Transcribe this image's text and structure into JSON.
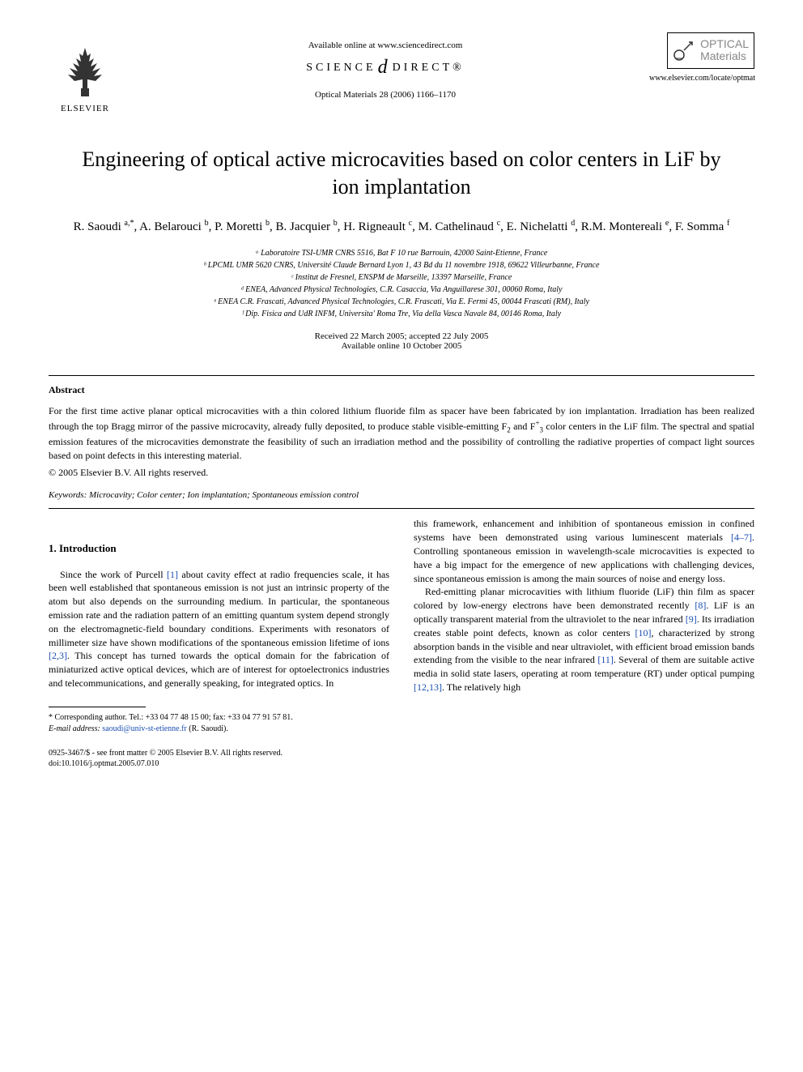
{
  "header": {
    "publisher": "ELSEVIER",
    "available_online": "Available online at www.sciencedirect.com",
    "science_direct_left": "SCIENCE",
    "science_direct_right": "DIRECT®",
    "journal_citation": "Optical Materials 28 (2006) 1166–1170",
    "journal_name_line1": "OPTICAL",
    "journal_name_line2": "Materials",
    "locate_url": "www.elsevier.com/locate/optmat"
  },
  "title": "Engineering of optical active microcavities based on color centers in LiF by ion implantation",
  "authors_html": "R. Saoudi <sup>a,*</sup>, A. Belarouci <sup>b</sup>, P. Moretti <sup>b</sup>, B. Jacquier <sup>b</sup>, H. Rigneault <sup>c</sup>, M. Cathelinaud <sup>c</sup>, E. Nichelatti <sup>d</sup>, R.M. Montereali <sup>e</sup>, F. Somma <sup>f</sup>",
  "affiliations": [
    "ᵃ Laboratoire TSI-UMR CNRS 5516, Bat F 10 rue Barrouin, 42000 Saint-Etienne, France",
    "ᵇ LPCML UMR 5620 CNRS, Université Claude Bernard Lyon 1, 43 Bd du 11 novembre 1918, 69622 Villeurbanne, France",
    "ᶜ Institut de Fresnel, ENSPM de Marseille, 13397 Marseille, France",
    "ᵈ ENEA, Advanced Physical Technologies, C.R. Casaccia, Via Anguillarese 301, 00060 Roma, Italy",
    "ᵉ ENEA C.R. Frascati, Advanced Physical Technologies, C.R. Frascati, Via E. Fermi 45, 00044 Frascati (RM), Italy",
    "ᶠ Dip. Fisica and UdR INFM, Universita' Roma Tre, Via della Vasca Navale 84, 00146 Roma, Italy"
  ],
  "dates": {
    "received_accepted": "Received 22 March 2005; accepted 22 July 2005",
    "online": "Available online 10 October 2005"
  },
  "abstract": {
    "heading": "Abstract",
    "body": "For the first time active planar optical microcavities with a thin colored lithium fluoride film as spacer have been fabricated by ion implantation. Irradiation has been realized through the top Bragg mirror of the passive microcavity, already fully deposited, to produce stable visible-emitting F₂ and F₃⁺ color centers in the LiF film. The spectral and spatial emission features of the microcavities demonstrate the feasibility of such an irradiation method and the possibility of controlling the radiative properties of compact light sources based on point defects in this interesting material.",
    "copyright": "© 2005 Elsevier B.V. All rights reserved."
  },
  "keywords": {
    "label": "Keywords:",
    "text": "Microcavity; Color center; Ion implantation; Spontaneous emission control"
  },
  "section1": {
    "heading": "1. Introduction",
    "col1_p1_a": "Since the work of Purcell ",
    "col1_p1_ref1": "[1]",
    "col1_p1_b": " about cavity effect at radio frequencies scale, it has been well established that spontaneous emission is not just an intrinsic property of the atom but also depends on the surrounding medium. In particular, the spontaneous emission rate and the radiation pattern of an emitting quantum system depend strongly on the electromagnetic-field boundary conditions. Experiments with resonators of millimeter size have shown modifications of the spontaneous emission lifetime of ions ",
    "col1_p1_ref2": "[2,3]",
    "col1_p1_c": ". This concept has turned towards the optical domain for the fabrication of miniaturized active optical devices, which are of interest for optoelectronics industries and telecommunications, and generally speaking, for integrated optics. In",
    "col2_p1_a": "this framework, enhancement and inhibition of spontaneous emission in confined systems have been demonstrated using various luminescent materials ",
    "col2_p1_ref1": "[4–7]",
    "col2_p1_b": ". Controlling spontaneous emission in wavelength-scale microcavities is expected to have a big impact for the emergence of new applications with challenging devices, since spontaneous emission is among the main sources of noise and energy loss.",
    "col2_p2_a": "Red-emitting planar microcavities with lithium fluoride (LiF) thin film as spacer colored by low-energy electrons have been demonstrated recently ",
    "col2_p2_ref1": "[8]",
    "col2_p2_b": ". LiF is an optically transparent material from the ultraviolet to the near infrared ",
    "col2_p2_ref2": "[9]",
    "col2_p2_c": ". Its irradiation creates stable point defects, known as color centers ",
    "col2_p2_ref3": "[10]",
    "col2_p2_d": ", characterized by strong absorption bands in the visible and near ultraviolet, with efficient broad emission bands extending from the visible to the near infrared ",
    "col2_p2_ref4": "[11]",
    "col2_p2_e": ". Several of them are suitable active media in solid state lasers, operating at room temperature (RT) under optical pumping ",
    "col2_p2_ref5": "[12,13]",
    "col2_p2_f": ". The relatively high"
  },
  "footnotes": {
    "corresponding": "* Corresponding author. Tel.: +33 04 77 48 15 00; fax: +33 04 77 91 57 81.",
    "email_label": "E-mail address:",
    "email": "saoudi@univ-st-etienne.fr",
    "email_author": "(R. Saoudi)."
  },
  "footer": {
    "line1": "0925-3467/$ - see front matter © 2005 Elsevier B.V. All rights reserved.",
    "line2": "doi:10.1016/j.optmat.2005.07.010"
  },
  "colors": {
    "link": "#1a4db3",
    "text": "#000000",
    "logo_gray": "#888888"
  }
}
